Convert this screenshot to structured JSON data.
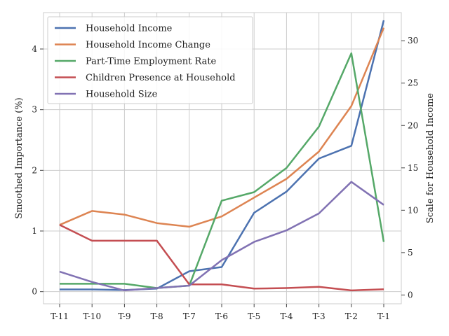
{
  "chart_data": {
    "type": "line",
    "categories": [
      "T-11",
      "T-10",
      "T-9",
      "T-8",
      "T-7",
      "T-6",
      "T-5",
      "T-4",
      "T-3",
      "T-2",
      "T-1"
    ],
    "ylabel": "Smoothed Importance (%)",
    "y2label": "Scale for Household Income",
    "ylim": [
      -0.2,
      4.6
    ],
    "yticks": [
      0,
      1,
      2,
      3,
      4
    ],
    "y2lim": [
      -1.04,
      33.32
    ],
    "y2ticks": [
      0,
      5,
      10,
      15,
      20,
      25,
      30
    ],
    "grid": true,
    "legend_position": "top-left",
    "series": [
      {
        "name": "Household Income",
        "color": "#4c72b0",
        "axis": "right",
        "values": [
          0.65,
          0.65,
          0.58,
          0.75,
          2.8,
          3.3,
          9.7,
          12.2,
          16.1,
          17.6,
          32.4
        ]
      },
      {
        "name": "Household Income Change",
        "color": "#dd8452",
        "axis": "left",
        "values": [
          1.1,
          1.33,
          1.27,
          1.13,
          1.07,
          1.24,
          1.55,
          1.86,
          2.31,
          3.06,
          4.35
        ]
      },
      {
        "name": "Part-Time Employment Rate",
        "color": "#55a868",
        "axis": "left",
        "values": [
          0.13,
          0.13,
          0.13,
          0.06,
          0.1,
          1.5,
          1.64,
          2.04,
          2.72,
          3.93,
          0.82
        ]
      },
      {
        "name": "Children Presence at Household",
        "color": "#c44e52",
        "axis": "left",
        "values": [
          1.1,
          0.84,
          0.84,
          0.84,
          0.12,
          0.12,
          0.05,
          0.06,
          0.08,
          0.02,
          0.04
        ]
      },
      {
        "name": "Household Size",
        "color": "#8172b3",
        "axis": "left",
        "values": [
          0.33,
          0.16,
          0.02,
          0.06,
          0.1,
          0.52,
          0.82,
          1.01,
          1.29,
          1.81,
          1.43
        ]
      }
    ]
  }
}
